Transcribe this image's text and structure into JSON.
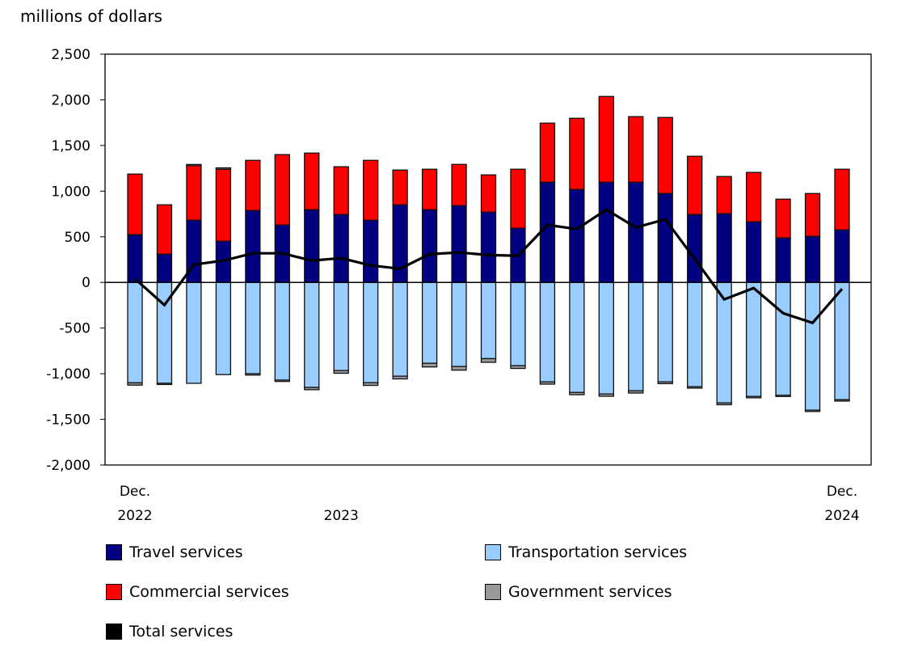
{
  "chart_data": {
    "type": "bar",
    "stacked": true,
    "ylabel": "millions of dollars",
    "ylim": [
      -2000,
      2500
    ],
    "yticks": [
      2500,
      2000,
      1500,
      1000,
      500,
      0,
      -500,
      -1000,
      -1500,
      -2000
    ],
    "ytick_labels": [
      "2,500",
      "2,000",
      "1,500",
      "1,000",
      "500",
      "0",
      "-500",
      "-1,000",
      "-1,500",
      "-2,000"
    ],
    "x_tick_labels": [
      {
        "index": 0,
        "lines": [
          "Dec.",
          "2022"
        ]
      },
      {
        "index": 7,
        "lines": [
          "",
          "2023"
        ]
      },
      {
        "index": 24,
        "lines": [
          "Dec.",
          "2024"
        ]
      }
    ],
    "grid": false,
    "legend_position": "bottom",
    "categories": [
      "Dec 2022",
      "Jan 2023",
      "Feb 2023",
      "Mar 2023",
      "Apr 2023",
      "May 2023",
      "Jun 2023",
      "Jul 2023",
      "Aug 2023",
      "Sep 2023",
      "Oct 2023",
      "Nov 2023",
      "Dec 2023",
      "Jan 2024",
      "Feb 2024",
      "Mar 2024",
      "Apr 2024",
      "May 2024",
      "Jun 2024",
      "Jul 2024",
      "Aug 2024",
      "Sep 2024",
      "Oct 2024",
      "Nov 2024",
      "Dec 2024"
    ],
    "series": [
      {
        "name": "Travel services",
        "color": "#000080",
        "kind": "bar",
        "values": [
          523,
          310,
          682,
          452,
          788,
          629,
          797,
          744,
          682,
          850,
          797,
          841,
          771,
          594,
          1098,
          1019,
          1098,
          1098,
          974,
          744,
          753,
          664,
          487,
          505,
          576
        ]
      },
      {
        "name": "Transportation services",
        "color": "#99ccff",
        "kind": "bar",
        "values": [
          -1100,
          -1105,
          -1105,
          -1010,
          -1000,
          -1070,
          -1150,
          -965,
          -1098,
          -1027,
          -886,
          -921,
          -835,
          -912,
          -1089,
          -1205,
          -1222,
          -1187,
          -1089,
          -1143,
          -1320,
          -1249,
          -1235,
          -1399,
          -1285
        ]
      },
      {
        "name": "Commercial services",
        "color": "#ff0000",
        "kind": "bar",
        "values": [
          664,
          540,
          600,
          788,
          549,
          771,
          620,
          523,
          655,
          381,
          443,
          452,
          407,
          646,
          647,
          779,
          939,
          718,
          833,
          638,
          407,
          541,
          425,
          469,
          664
        ]
      },
      {
        "name": "Government services",
        "color": "#999999",
        "kind": "bar",
        "values": [
          -25,
          -5,
          10,
          15,
          -15,
          -15,
          -25,
          -30,
          -30,
          -30,
          -40,
          -40,
          -40,
          -30,
          -25,
          -25,
          -25,
          -25,
          -20,
          -15,
          -20,
          -15,
          -15,
          -15,
          -15
        ]
      },
      {
        "name": "Total services",
        "color": "#000000",
        "kind": "line",
        "values": [
          40,
          -248,
          195,
          239,
          319,
          319,
          239,
          266,
          186,
          150,
          310,
          328,
          300,
          292,
          629,
          585,
          797,
          602,
          691,
          257,
          -186,
          -62,
          -337,
          -443,
          -71
        ]
      }
    ]
  }
}
